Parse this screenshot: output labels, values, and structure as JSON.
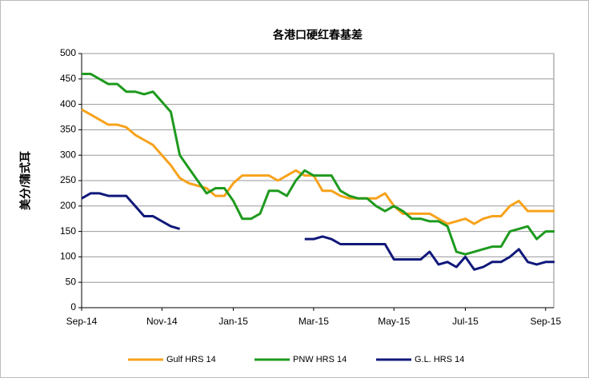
{
  "chart_data": {
    "type": "line",
    "title": "各港口硬红春基差",
    "y_label": "美分/蒲式耳",
    "categories": [
      "Sep-14",
      null,
      null,
      null,
      null,
      null,
      null,
      null,
      null,
      "Nov-14",
      null,
      null,
      null,
      null,
      null,
      null,
      null,
      "Jan-15",
      null,
      null,
      null,
      null,
      null,
      null,
      null,
      null,
      "Mar-15",
      null,
      null,
      null,
      null,
      null,
      null,
      null,
      null,
      "May-15",
      null,
      null,
      null,
      null,
      null,
      null,
      null,
      "Jul-15",
      null,
      null,
      null,
      null,
      null,
      null,
      null,
      null,
      "Sep-15",
      null
    ],
    "series": [
      {
        "name": "Gulf HRS 14",
        "color": "#f7a21b",
        "values": [
          390,
          380,
          370,
          360,
          360,
          355,
          340,
          330,
          320,
          300,
          280,
          255,
          245,
          240,
          235,
          220,
          220,
          245,
          260,
          260,
          260,
          260,
          250,
          260,
          270,
          260,
          260,
          230,
          230,
          220,
          215,
          215,
          215,
          215,
          225,
          200,
          185,
          185,
          185,
          185,
          175,
          165,
          170,
          175,
          165,
          175,
          180,
          180,
          200,
          210,
          190,
          190,
          190,
          190
        ]
      },
      {
        "name": "PNW HRS 14",
        "color": "#1e9a1e",
        "values": [
          460,
          460,
          450,
          440,
          440,
          425,
          425,
          420,
          425,
          405,
          385,
          300,
          275,
          250,
          225,
          235,
          235,
          210,
          175,
          175,
          185,
          230,
          230,
          220,
          250,
          270,
          260,
          260,
          260,
          230,
          220,
          215,
          215,
          200,
          190,
          200,
          190,
          175,
          175,
          170,
          170,
          160,
          110,
          105,
          110,
          115,
          120,
          120,
          150,
          155,
          160,
          135,
          150,
          150
        ]
      },
      {
        "name": "G.L. HRS 14",
        "color": "#10187a",
        "values": [
          215,
          225,
          225,
          220,
          220,
          220,
          200,
          180,
          180,
          170,
          160,
          155,
          null,
          null,
          null,
          null,
          null,
          null,
          null,
          null,
          null,
          null,
          null,
          null,
          null,
          135,
          135,
          140,
          135,
          125,
          125,
          125,
          125,
          125,
          125,
          95,
          95,
          95,
          95,
          110,
          85,
          90,
          80,
          100,
          75,
          80,
          90,
          90,
          100,
          115,
          90,
          85,
          90,
          90
        ]
      }
    ],
    "ylim": [
      0,
      500
    ],
    "yticks": [
      0,
      50,
      100,
      150,
      200,
      250,
      300,
      350,
      400,
      450,
      500
    ],
    "grid": true
  }
}
